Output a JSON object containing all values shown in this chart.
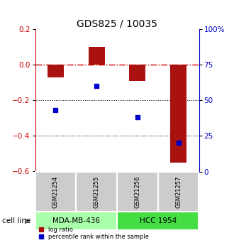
{
  "title": "GDS825 / 10035",
  "samples": [
    "GSM21254",
    "GSM21255",
    "GSM21256",
    "GSM21257"
  ],
  "log_ratio": [
    -0.07,
    0.1,
    -0.09,
    -0.55
  ],
  "percentile_rank": [
    43,
    60,
    38,
    20
  ],
  "left_ylim": [
    -0.6,
    0.2
  ],
  "right_ylim": [
    0,
    100
  ],
  "left_yticks": [
    -0.6,
    -0.4,
    -0.2,
    0.0,
    0.2
  ],
  "right_yticks": [
    0,
    25,
    50,
    75,
    100
  ],
  "right_yticklabels": [
    "0",
    "25",
    "50",
    "75",
    "100%"
  ],
  "groups": [
    {
      "label": "MDA-MB-436",
      "samples": [
        0,
        1
      ],
      "color": "#aaffaa"
    },
    {
      "label": "HCC 1954",
      "samples": [
        2,
        3
      ],
      "color": "#44dd44"
    }
  ],
  "bar_color": "#aa1111",
  "point_color": "#0000cc",
  "bar_width": 0.4,
  "cell_line_label": "cell line",
  "legend_items": [
    "log ratio",
    "percentile rank within the sample"
  ],
  "legend_colors": [
    "#aa1111",
    "#0000cc"
  ],
  "hline_color": "#cc0000",
  "dotted_line_color": "#000000",
  "sample_box_color": "#cccccc",
  "title_fontsize": 10,
  "tick_fontsize": 7.5,
  "label_fontsize": 8
}
